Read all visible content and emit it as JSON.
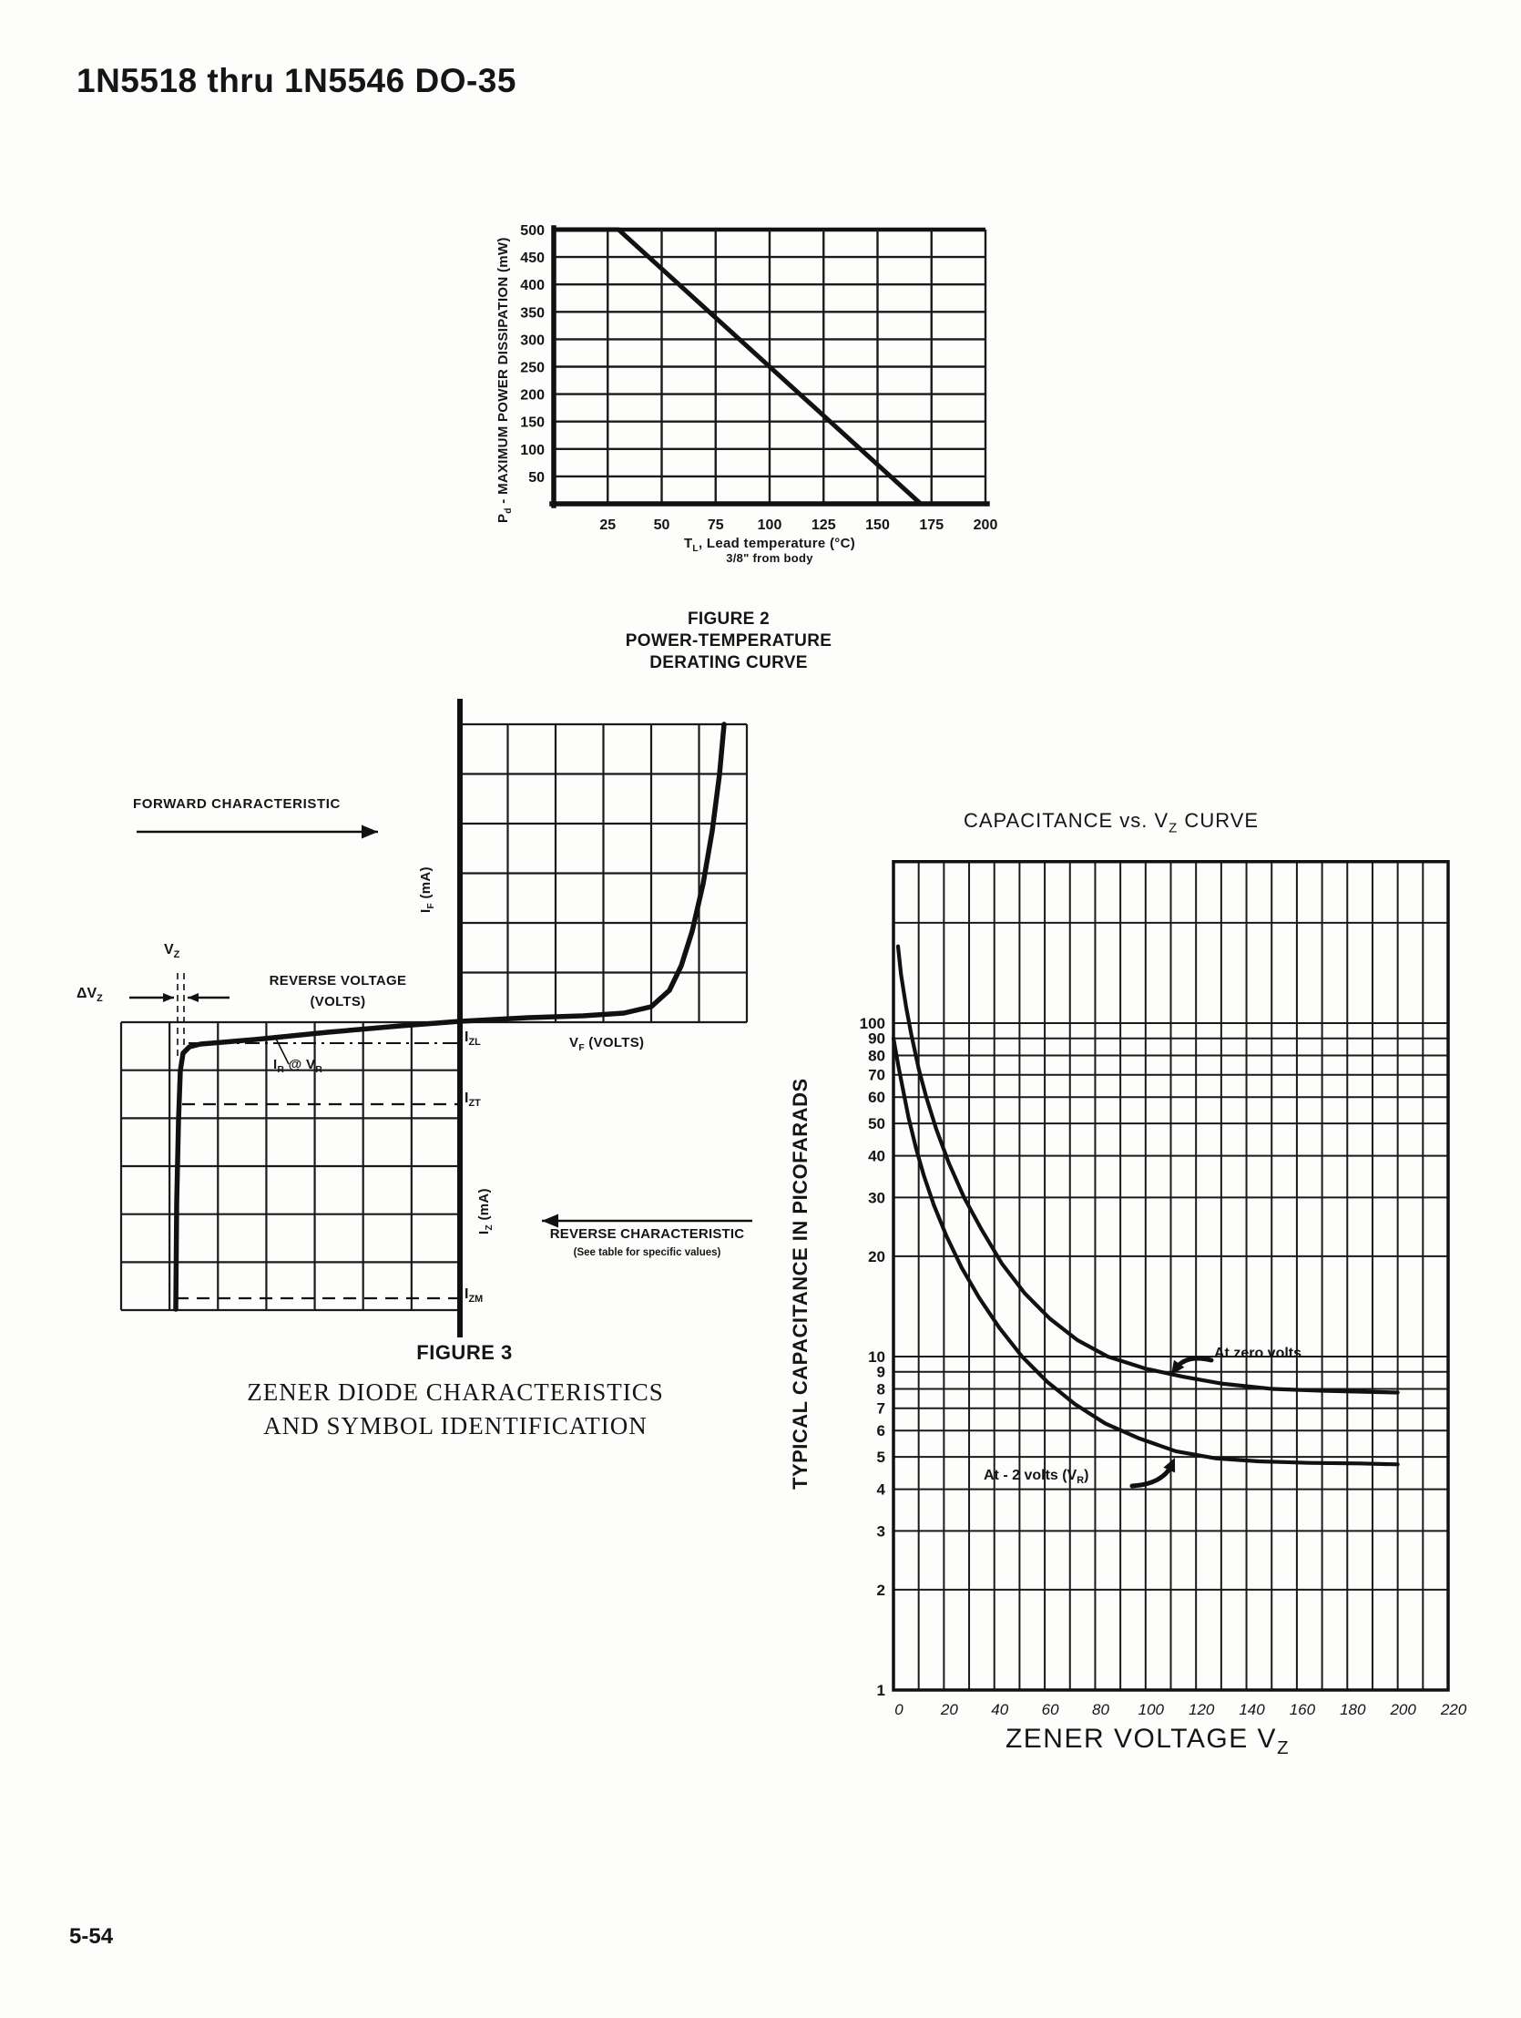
{
  "page": {
    "title": "1N5518 thru 1N5546 DO-35",
    "page_number": "5-54"
  },
  "figure2": {
    "caption": [
      "FIGURE 2",
      "POWER-TEMPERATURE",
      "DERATING CURVE"
    ],
    "y_title_parts": [
      {
        "t": "P"
      },
      {
        "s": "d"
      },
      {
        "t": " - MAXIMUM POWER DISSIPATION (mW)"
      }
    ],
    "x_title_line1_parts": [
      {
        "t": "T"
      },
      {
        "s": "L"
      },
      {
        "t": ", Lead temperature (°C)"
      }
    ],
    "x_title_line2": "3/8\" from body"
  },
  "figure3": {
    "forward_label": "FORWARD CHARACTERISTIC",
    "if_axis_parts": [
      {
        "t": "I"
      },
      {
        "s": "F"
      },
      {
        "t": " (mA)"
      }
    ],
    "vz_parts": [
      {
        "t": "V"
      },
      {
        "s": "Z"
      }
    ],
    "dvz_parts": [
      {
        "t": "ΔV"
      },
      {
        "s": "Z"
      }
    ],
    "reverse_voltage_line1": "REVERSE VOLTAGE",
    "reverse_voltage_line2": "(VOLTS)",
    "ir_vr_parts": [
      {
        "t": "I"
      },
      {
        "s": "R"
      },
      {
        "t": " @ V"
      },
      {
        "s": "R"
      }
    ],
    "vf_axis_parts": [
      {
        "t": "V"
      },
      {
        "s": "F"
      },
      {
        "t": " (VOLTS)"
      }
    ],
    "izl_parts": [
      {
        "t": "I"
      },
      {
        "s": "ZL"
      }
    ],
    "izt_parts": [
      {
        "t": "I"
      },
      {
        "s": "ZT"
      }
    ],
    "iz_axis_parts": [
      {
        "t": "I"
      },
      {
        "s": "Z"
      },
      {
        "t": " (mA)"
      }
    ],
    "izm_parts": [
      {
        "t": "I"
      },
      {
        "s": "ZM"
      }
    ],
    "reverse_char_line1": "REVERSE CHARACTERISTIC",
    "reverse_char_line2": "(See table for specific values)",
    "caption_title": "FIGURE 3",
    "caption_line1": "ZENER DIODE CHARACTERISTICS",
    "caption_line2": "AND SYMBOL IDENTIFICATION"
  },
  "cap_chart": {
    "title_parts": [
      {
        "t": "CAPACITANCE vs. V"
      },
      {
        "s": "Z"
      },
      {
        "t": " CURVE"
      }
    ],
    "y_title": "TYPICAL CAPACITANCE IN PICOFARADS",
    "x_title_parts": [
      {
        "t": "ZENER VOLTAGE V"
      },
      {
        "s": "Z"
      }
    ],
    "ann_zero": "At zero volts",
    "ann_minus2_parts": [
      {
        "t": "At - 2 volts (V"
      },
      {
        "s": "R"
      },
      {
        "t": ")"
      }
    ]
  },
  "chart_data": [
    {
      "type": "line",
      "title": "FIGURE 2 POWER-TEMPERATURE DERATING CURVE",
      "xlabel": "TL, Lead temperature (°C) 3/8\" from body",
      "ylabel": "Pd - MAXIMUM POWER DISSIPATION (mW)",
      "xlim": [
        0,
        200
      ],
      "ylim": [
        0,
        500
      ],
      "x_ticks": [
        25,
        50,
        75,
        100,
        125,
        150,
        175,
        200
      ],
      "y_ticks": [
        50,
        100,
        150,
        200,
        250,
        300,
        350,
        400,
        450,
        500
      ],
      "grid": true,
      "legend": "none",
      "series": [
        {
          "name": "maximum power dissipation derating",
          "points": [
            [
              0,
              500
            ],
            [
              30,
              500
            ],
            [
              170,
              0
            ]
          ]
        }
      ]
    },
    {
      "type": "line",
      "qualitative": true,
      "title": "FIGURE 3 ZENER DIODE CHARACTERISTICS AND SYMBOL IDENTIFICATION",
      "upper_right_quadrant": "Forward characteristic: IF (mA) vs VF (VOLTS), exponential rise",
      "lower_left_quadrant": "Reverse characteristic: IZ (mA) vs REVERSE VOLTAGE (VOLTS), sharp breakdown at VZ",
      "marked_current_levels": [
        "IZL",
        "IZT",
        "IZM"
      ],
      "marked_voltage_items": [
        "VZ",
        "ΔVZ",
        "IR @ VR"
      ],
      "note": "(See table for specific values)",
      "arrows": [
        "FORWARD CHARACTERISTIC →",
        "← REVERSE CHARACTERISTIC"
      ]
    },
    {
      "type": "line",
      "title": "CAPACITANCE vs. VZ CURVE",
      "xlabel": "ZENER VOLTAGE VZ",
      "ylabel": "TYPICAL CAPACITANCE IN PICOFARADS",
      "xlim": [
        0,
        220
      ],
      "ylim": [
        1,
        300
      ],
      "yscale": "log",
      "grid": true,
      "x_minor_step": 10,
      "x_ticks": [
        0,
        20,
        40,
        60,
        80,
        100,
        120,
        140,
        160,
        180,
        200,
        220
      ],
      "y_tick_labels": [
        100,
        90,
        80,
        70,
        60,
        50,
        40,
        30,
        20,
        10,
        9,
        8,
        7,
        6,
        5,
        4,
        3,
        2,
        1
      ],
      "series": [
        {
          "name": "At zero volts",
          "points": [
            [
              1.8,
              170
            ],
            [
              3,
              140
            ],
            [
              5,
              112
            ],
            [
              7,
              93
            ],
            [
              10,
              73
            ],
            [
              13,
              60
            ],
            [
              17,
              48
            ],
            [
              22,
              38
            ],
            [
              28,
              30
            ],
            [
              35,
              24
            ],
            [
              43,
              19
            ],
            [
              52,
              15.5
            ],
            [
              62,
              13
            ],
            [
              73,
              11.2
            ],
            [
              85,
              10
            ],
            [
              100,
              9.2
            ],
            [
              115,
              8.7
            ],
            [
              130,
              8.3
            ],
            [
              150,
              8.0
            ],
            [
              170,
              7.9
            ],
            [
              185,
              7.85
            ],
            [
              200,
              7.8
            ]
          ]
        },
        {
          "name": "At - 2 volts (VR)",
          "points": [
            [
              0,
              90
            ],
            [
              2,
              74
            ],
            [
              4,
              62
            ],
            [
              6,
              52
            ],
            [
              9,
              42
            ],
            [
              12,
              35
            ],
            [
              16,
              28.5
            ],
            [
              21,
              23
            ],
            [
              27,
              18.5
            ],
            [
              34,
              15
            ],
            [
              42,
              12.2
            ],
            [
              51,
              10
            ],
            [
              61,
              8.4
            ],
            [
              72,
              7.2
            ],
            [
              84,
              6.3
            ],
            [
              97,
              5.7
            ],
            [
              112,
              5.2
            ],
            [
              128,
              4.95
            ],
            [
              145,
              4.85
            ],
            [
              165,
              4.8
            ],
            [
              185,
              4.78
            ],
            [
              200,
              4.75
            ]
          ]
        }
      ]
    }
  ]
}
